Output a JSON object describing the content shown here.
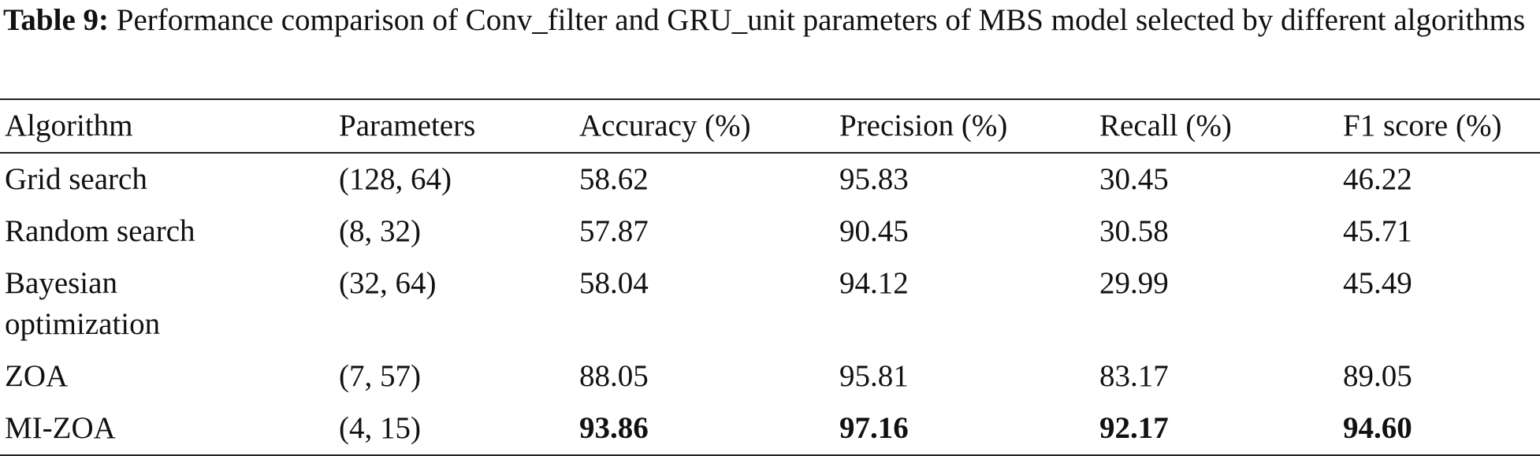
{
  "caption": {
    "label": "Table 9:",
    "text": "Performance comparison of Conv_filter and GRU_unit parameters of MBS model selected by different algorithms"
  },
  "table": {
    "header": [
      "Algorithm",
      "Parameters",
      "Accuracy (%)",
      "Precision (%)",
      "Recall (%)",
      "F1 score (%)"
    ],
    "rows": [
      [
        "Grid search",
        "(128, 64)",
        "58.62",
        "95.83",
        "30.45",
        "46.22"
      ],
      [
        "Random search",
        "(8, 32)",
        "57.87",
        "90.45",
        "30.58",
        "45.71"
      ],
      [
        "Bayesian optimization",
        "(32, 64)",
        "58.04",
        "94.12",
        "29.99",
        "45.49"
      ],
      [
        "ZOA",
        "(7, 57)",
        "88.05",
        "95.81",
        "83.17",
        "89.05"
      ],
      [
        "MI-ZOA",
        "(4, 15)",
        "93.86",
        "97.16",
        "92.17",
        "94.60"
      ]
    ]
  }
}
